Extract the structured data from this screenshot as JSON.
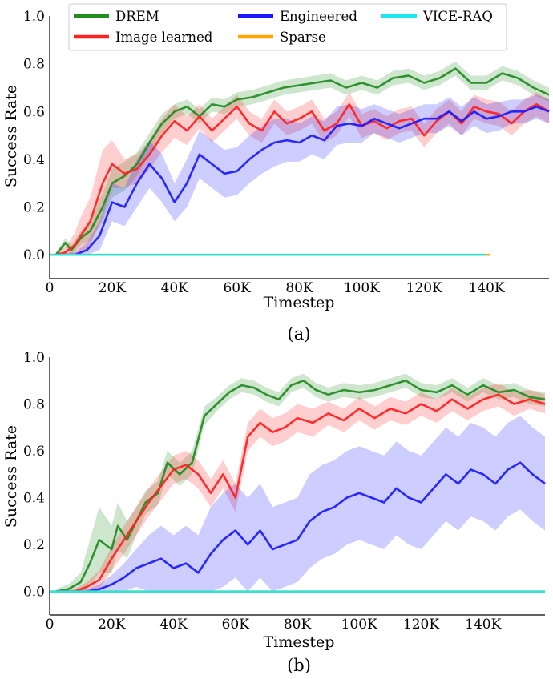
{
  "legend": [
    {
      "name": "DREM",
      "color": "#228b22"
    },
    {
      "name": "Image learned",
      "color": "#ff2020"
    },
    {
      "name": "Engineered",
      "color": "#1a1aff"
    },
    {
      "name": "Sparse",
      "color": "#ffa500"
    },
    {
      "name": "VICE-RAQ",
      "color": "#22e6e6"
    }
  ],
  "chart_data": [
    {
      "type": "line",
      "caption": "(a)",
      "xlabel": "Timestep",
      "ylabel": "Success Rate",
      "xlim": [
        0,
        160000
      ],
      "ylim": [
        -0.1,
        1.0
      ],
      "x_ticks": [
        0,
        20000,
        40000,
        60000,
        80000,
        100000,
        120000,
        140000
      ],
      "x_tick_labels": [
        "0",
        "20K",
        "40K",
        "60K",
        "80K",
        "100K",
        "120K",
        "140K"
      ],
      "y_ticks": [
        0.0,
        0.2,
        0.4,
        0.6,
        0.8,
        1.0
      ],
      "y_tick_labels": [
        "0.0",
        "0.2",
        "0.4",
        "0.6",
        "0.8",
        "1.0"
      ],
      "series": [
        {
          "name": "DREM",
          "color": "#228b22",
          "x": [
            2000,
            5000,
            7000,
            10000,
            13000,
            17000,
            20000,
            24000,
            28000,
            32000,
            36000,
            40000,
            44000,
            48000,
            52000,
            56000,
            60000,
            65000,
            70000,
            75000,
            80000,
            85000,
            90000,
            95000,
            100000,
            105000,
            110000,
            115000,
            120000,
            125000,
            130000,
            135000,
            140000,
            145000,
            150000,
            155000,
            160000
          ],
          "y": [
            0.0,
            0.05,
            0.02,
            0.07,
            0.1,
            0.2,
            0.3,
            0.33,
            0.38,
            0.47,
            0.55,
            0.6,
            0.62,
            0.58,
            0.63,
            0.62,
            0.65,
            0.66,
            0.68,
            0.7,
            0.71,
            0.72,
            0.73,
            0.7,
            0.72,
            0.7,
            0.74,
            0.75,
            0.72,
            0.74,
            0.78,
            0.72,
            0.72,
            0.76,
            0.74,
            0.7,
            0.67
          ],
          "band": [
            0.01,
            0.02,
            0.02,
            0.03,
            0.04,
            0.06,
            0.06,
            0.06,
            0.05,
            0.04,
            0.04,
            0.03,
            0.03,
            0.03,
            0.03,
            0.03,
            0.03,
            0.03,
            0.03,
            0.03,
            0.03,
            0.03,
            0.03,
            0.03,
            0.03,
            0.03,
            0.03,
            0.03,
            0.03,
            0.03,
            0.03,
            0.03,
            0.03,
            0.03,
            0.03,
            0.03,
            0.03
          ]
        },
        {
          "name": "Image learned",
          "color": "#ff2020",
          "x": [
            2000,
            5000,
            8000,
            10000,
            13000,
            17000,
            20000,
            24000,
            28000,
            32000,
            36000,
            40000,
            44000,
            48000,
            52000,
            56000,
            60000,
            64000,
            68000,
            72000,
            76000,
            80000,
            84000,
            88000,
            92000,
            96000,
            100000,
            104000,
            108000,
            112000,
            116000,
            120000,
            124000,
            128000,
            132000,
            136000,
            140000,
            144000,
            148000,
            152000,
            156000,
            160000
          ],
          "y": [
            0.0,
            0.01,
            0.04,
            0.08,
            0.14,
            0.3,
            0.38,
            0.34,
            0.36,
            0.42,
            0.5,
            0.56,
            0.52,
            0.58,
            0.52,
            0.57,
            0.62,
            0.55,
            0.52,
            0.6,
            0.55,
            0.57,
            0.6,
            0.52,
            0.55,
            0.63,
            0.54,
            0.56,
            0.53,
            0.56,
            0.57,
            0.5,
            0.56,
            0.6,
            0.55,
            0.62,
            0.6,
            0.59,
            0.55,
            0.6,
            0.63,
            0.6
          ],
          "band": [
            0.01,
            0.02,
            0.05,
            0.08,
            0.1,
            0.14,
            0.1,
            0.06,
            0.06,
            0.06,
            0.07,
            0.07,
            0.06,
            0.05,
            0.05,
            0.05,
            0.05,
            0.05,
            0.05,
            0.05,
            0.05,
            0.05,
            0.05,
            0.05,
            0.05,
            0.05,
            0.05,
            0.05,
            0.05,
            0.05,
            0.05,
            0.05,
            0.05,
            0.05,
            0.05,
            0.05,
            0.05,
            0.05,
            0.05,
            0.05,
            0.05,
            0.05
          ]
        },
        {
          "name": "Engineered",
          "color": "#1a1aff",
          "x": [
            2000,
            8000,
            12000,
            16000,
            20000,
            24000,
            28000,
            32000,
            36000,
            40000,
            44000,
            48000,
            52000,
            56000,
            60000,
            64000,
            68000,
            72000,
            76000,
            80000,
            84000,
            88000,
            92000,
            96000,
            100000,
            104000,
            108000,
            112000,
            116000,
            120000,
            124000,
            128000,
            132000,
            136000,
            140000,
            144000,
            148000,
            152000,
            156000,
            160000
          ],
          "y": [
            0.0,
            0.0,
            0.02,
            0.08,
            0.22,
            0.2,
            0.3,
            0.38,
            0.32,
            0.22,
            0.3,
            0.42,
            0.38,
            0.34,
            0.35,
            0.4,
            0.44,
            0.47,
            0.48,
            0.47,
            0.5,
            0.48,
            0.54,
            0.55,
            0.54,
            0.57,
            0.55,
            0.53,
            0.55,
            0.57,
            0.57,
            0.6,
            0.56,
            0.6,
            0.57,
            0.58,
            0.6,
            0.6,
            0.62,
            0.6
          ],
          "band": [
            0.01,
            0.01,
            0.03,
            0.06,
            0.08,
            0.08,
            0.1,
            0.1,
            0.1,
            0.08,
            0.1,
            0.1,
            0.1,
            0.1,
            0.1,
            0.1,
            0.1,
            0.1,
            0.09,
            0.08,
            0.08,
            0.08,
            0.08,
            0.08,
            0.07,
            0.06,
            0.06,
            0.06,
            0.06,
            0.06,
            0.06,
            0.06,
            0.06,
            0.06,
            0.06,
            0.06,
            0.05,
            0.05,
            0.05,
            0.05
          ]
        },
        {
          "name": "Sparse",
          "color": "#ffa500",
          "x": [
            0,
            141000
          ],
          "y": [
            0.0,
            0.0
          ]
        },
        {
          "name": "VICE-RAQ",
          "color": "#22e6e6",
          "x": [
            0,
            140000
          ],
          "y": [
            0.0,
            0.0
          ]
        }
      ]
    },
    {
      "type": "line",
      "caption": "(b)",
      "xlabel": "Timestep",
      "ylabel": "Success Rate",
      "xlim": [
        0,
        160000
      ],
      "ylim": [
        -0.1,
        1.0
      ],
      "x_ticks": [
        0,
        20000,
        40000,
        60000,
        80000,
        100000,
        120000,
        140000
      ],
      "x_tick_labels": [
        "0",
        "20K",
        "40K",
        "60K",
        "80K",
        "100K",
        "120K",
        "140K"
      ],
      "y_ticks": [
        0.0,
        0.2,
        0.4,
        0.6,
        0.8,
        1.0
      ],
      "y_tick_labels": [
        "0.0",
        "0.2",
        "0.4",
        "0.6",
        "0.8",
        "1.0"
      ],
      "series": [
        {
          "name": "DREM",
          "color": "#228b22",
          "x": [
            2000,
            6000,
            10000,
            13000,
            16000,
            18000,
            20000,
            22000,
            25000,
            28000,
            31000,
            35000,
            38000,
            42000,
            46000,
            50000,
            54000,
            58000,
            62000,
            66000,
            70000,
            74000,
            78000,
            82000,
            86000,
            90000,
            95000,
            100000,
            105000,
            110000,
            115000,
            120000,
            125000,
            130000,
            135000,
            140000,
            145000,
            150000,
            155000,
            160000
          ],
          "y": [
            0.0,
            0.01,
            0.04,
            0.12,
            0.22,
            0.2,
            0.18,
            0.28,
            0.22,
            0.3,
            0.38,
            0.42,
            0.55,
            0.5,
            0.55,
            0.75,
            0.8,
            0.85,
            0.88,
            0.87,
            0.84,
            0.82,
            0.88,
            0.9,
            0.86,
            0.84,
            0.86,
            0.85,
            0.86,
            0.88,
            0.9,
            0.86,
            0.85,
            0.88,
            0.84,
            0.88,
            0.85,
            0.86,
            0.83,
            0.82
          ],
          "band": [
            0.01,
            0.02,
            0.04,
            0.1,
            0.14,
            0.12,
            0.1,
            0.1,
            0.08,
            0.06,
            0.05,
            0.05,
            0.05,
            0.05,
            0.05,
            0.04,
            0.03,
            0.03,
            0.03,
            0.03,
            0.03,
            0.03,
            0.03,
            0.03,
            0.03,
            0.03,
            0.03,
            0.03,
            0.03,
            0.03,
            0.03,
            0.03,
            0.03,
            0.03,
            0.03,
            0.03,
            0.03,
            0.03,
            0.03,
            0.03
          ]
        },
        {
          "name": "Image learned",
          "color": "#ff2020",
          "x": [
            2000,
            8000,
            12000,
            16000,
            20000,
            24000,
            28000,
            32000,
            36000,
            40000,
            44000,
            48000,
            52000,
            56000,
            60000,
            64000,
            68000,
            72000,
            76000,
            80000,
            85000,
            90000,
            95000,
            100000,
            105000,
            110000,
            115000,
            120000,
            125000,
            130000,
            135000,
            140000,
            145000,
            150000,
            155000,
            160000
          ],
          "y": [
            0.0,
            0.0,
            0.02,
            0.05,
            0.14,
            0.22,
            0.3,
            0.38,
            0.45,
            0.52,
            0.54,
            0.5,
            0.42,
            0.5,
            0.4,
            0.66,
            0.72,
            0.68,
            0.7,
            0.74,
            0.72,
            0.76,
            0.73,
            0.78,
            0.74,
            0.78,
            0.76,
            0.8,
            0.77,
            0.82,
            0.78,
            0.82,
            0.84,
            0.8,
            0.82,
            0.8
          ],
          "band": [
            0.0,
            0.01,
            0.02,
            0.04,
            0.05,
            0.06,
            0.06,
            0.06,
            0.06,
            0.06,
            0.06,
            0.06,
            0.06,
            0.06,
            0.06,
            0.06,
            0.06,
            0.06,
            0.06,
            0.06,
            0.06,
            0.05,
            0.05,
            0.05,
            0.05,
            0.05,
            0.05,
            0.05,
            0.05,
            0.05,
            0.05,
            0.05,
            0.05,
            0.05,
            0.04,
            0.04
          ]
        },
        {
          "name": "Engineered",
          "color": "#1a1aff",
          "x": [
            2000,
            12000,
            16000,
            20000,
            24000,
            28000,
            32000,
            36000,
            40000,
            44000,
            48000,
            52000,
            56000,
            60000,
            64000,
            68000,
            72000,
            76000,
            80000,
            84000,
            88000,
            92000,
            96000,
            100000,
            104000,
            108000,
            112000,
            116000,
            120000,
            124000,
            128000,
            132000,
            136000,
            140000,
            144000,
            148000,
            152000,
            156000,
            160000
          ],
          "y": [
            0.0,
            0.0,
            0.01,
            0.03,
            0.06,
            0.1,
            0.12,
            0.14,
            0.1,
            0.12,
            0.08,
            0.16,
            0.22,
            0.26,
            0.2,
            0.26,
            0.18,
            0.2,
            0.22,
            0.3,
            0.34,
            0.36,
            0.4,
            0.42,
            0.4,
            0.38,
            0.44,
            0.4,
            0.38,
            0.44,
            0.5,
            0.46,
            0.52,
            0.5,
            0.46,
            0.52,
            0.55,
            0.5,
            0.46
          ],
          "band": [
            0.0,
            0.01,
            0.02,
            0.04,
            0.06,
            0.08,
            0.12,
            0.14,
            0.14,
            0.16,
            0.16,
            0.2,
            0.2,
            0.2,
            0.2,
            0.2,
            0.18,
            0.18,
            0.18,
            0.2,
            0.2,
            0.2,
            0.2,
            0.2,
            0.2,
            0.2,
            0.2,
            0.2,
            0.2,
            0.2,
            0.2,
            0.2,
            0.2,
            0.2,
            0.2,
            0.2,
            0.2,
            0.2,
            0.2
          ]
        },
        {
          "name": "Sparse",
          "color": "#ffa500",
          "x": [
            0,
            160000
          ],
          "y": [
            0.0,
            0.0
          ]
        },
        {
          "name": "VICE-RAQ",
          "color": "#22e6e6",
          "x": [
            0,
            160000
          ],
          "y": [
            0.0,
            0.0
          ]
        }
      ]
    }
  ]
}
